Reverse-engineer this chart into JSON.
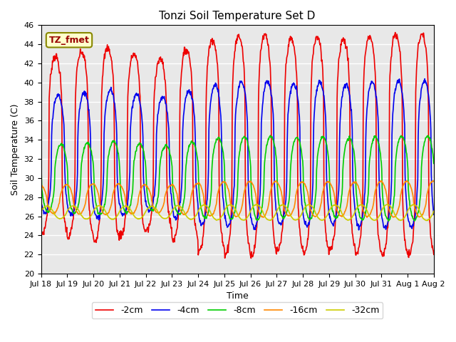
{
  "title": "Tonzi Soil Temperature Set D",
  "xlabel": "Time",
  "ylabel": "Soil Temperature (C)",
  "ylim": [
    20,
    46
  ],
  "annotation": "TZ_fmet",
  "bg_color": "#e8e8e8",
  "fig_color": "#ffffff",
  "grid_color": "#ffffff",
  "series": {
    "-2cm": {
      "color": "#ee0000",
      "lw": 1.2,
      "amp": 10.5,
      "base": 33.5,
      "phase": 0.0,
      "sharpness": 3.5,
      "min_clip": 21.5
    },
    "-4cm": {
      "color": "#0000ee",
      "lw": 1.2,
      "amp": 7.0,
      "base": 32.5,
      "phase": 0.1,
      "sharpness": 2.5,
      "min_clip": 24.5
    },
    "-8cm": {
      "color": "#00cc00",
      "lw": 1.2,
      "amp": 4.0,
      "base": 30.0,
      "phase": 0.22,
      "sharpness": 2.0,
      "min_clip": 25.5
    },
    "-16cm": {
      "color": "#ff8800",
      "lw": 1.2,
      "amp": 1.7,
      "base": 27.8,
      "phase": 0.42,
      "sharpness": 1.5,
      "min_clip": 25.5
    },
    "-32cm": {
      "color": "#cccc00",
      "lw": 1.2,
      "amp": 0.75,
      "base": 26.4,
      "phase": 0.68,
      "sharpness": 1.2,
      "min_clip": 25.2
    }
  },
  "x_tick_labels": [
    "Jul 18",
    "Jul 19",
    "Jul 20",
    "Jul 21",
    "Jul 22",
    "Jul 23",
    "Jul 24",
    "Jul 25",
    "Jul 26",
    "Jul 27",
    "Jul 28",
    "Jul 29",
    "Jul 30",
    "Jul 31",
    "Aug 1",
    "Aug 2"
  ],
  "legend_order": [
    "-2cm",
    "-4cm",
    "-8cm",
    "-16cm",
    "-32cm"
  ],
  "n_points": 960,
  "days": 15,
  "amplitude_ramp": [
    0.88,
    0.92,
    0.96,
    0.9,
    0.85,
    0.95,
    1.05,
    1.08,
    1.1,
    1.05,
    1.08,
    1.05,
    1.08,
    1.1,
    1.1
  ]
}
